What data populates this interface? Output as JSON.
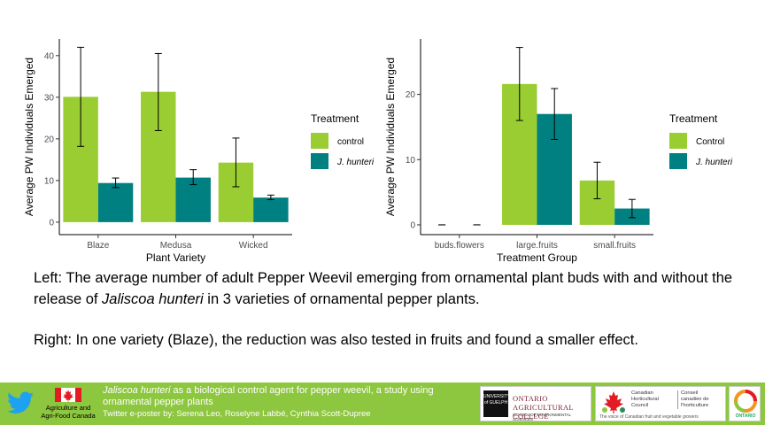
{
  "chart_data": [
    {
      "type": "bar",
      "title": "",
      "xlabel": "Plant Variety",
      "ylabel": "Average PW Individuals Emerged",
      "categories": [
        "Blaze",
        "Medusa",
        "Wicked"
      ],
      "ylim": [
        -3,
        44
      ],
      "yticks": [
        0,
        10,
        20,
        30,
        40
      ],
      "grid": false,
      "legend_title": "Treatment",
      "legend_position": "right",
      "series": [
        {
          "name": "control",
          "color": "#9acd32",
          "values": [
            30.1,
            31.3,
            14.3
          ],
          "err_low": [
            18.2,
            22.0,
            8.5
          ],
          "err_high": [
            42.0,
            40.5,
            20.2
          ]
        },
        {
          "name": "J. hunteri",
          "color": "#008080",
          "values": [
            9.4,
            10.7,
            5.9
          ],
          "err_low": [
            8.3,
            9.0,
            5.4
          ],
          "err_high": [
            10.6,
            12.6,
            6.5
          ]
        }
      ]
    },
    {
      "type": "bar",
      "title": "",
      "xlabel": "Treatment Group",
      "ylabel": "Average PW Individuals Emerged",
      "categories": [
        "buds.flowers",
        "large.fruits",
        "small.fruits"
      ],
      "ylim": [
        -1.5,
        28.5
      ],
      "yticks": [
        0,
        10,
        20
      ],
      "grid": false,
      "legend_title": "Treatment",
      "legend_position": "right",
      "series": [
        {
          "name": "Control",
          "color": "#9acd32",
          "values": [
            0,
            21.6,
            6.8
          ],
          "err_low": [
            0,
            16.0,
            4.0
          ],
          "err_high": [
            0,
            27.2,
            9.6
          ]
        },
        {
          "name": "J. hunteri",
          "color": "#008080",
          "values": [
            0,
            17.0,
            2.5
          ],
          "err_low": [
            0,
            13.1,
            1.1
          ],
          "err_high": [
            0,
            20.9,
            3.9
          ]
        }
      ]
    }
  ],
  "captions": {
    "left_prefix": "Left: The average number of adult Pepper Weevil emerging from ornamental plant buds with and without the release of ",
    "left_italic": "Jaliscoa hunteri",
    "left_suffix": " in 3 varieties of ornamental pepper plants.",
    "right": "Right: In one variety (Blaze), the reduction was also tested in fruits and found a smaller effect."
  },
  "footer": {
    "aafc_label_line1": "Agriculture and",
    "aafc_label_line2": "Agri-Food Canada",
    "title_italic": "Jaliscoa hunteri",
    "title_rest": " as a biological control agent for pepper weevil, a study using ornamental pepper plants",
    "credit": "Twitter e-poster by: Serena Leo, Roselyne Labbé, Cynthia Scott-Dupree",
    "oac_crest": "UNIVERSITY of GUELPH",
    "oac_name_line1": "ONTARIO",
    "oac_name_line2": "AGRICULTURAL COLLEGE",
    "oac_sub": "SCHOOL OF ENVIRONMENTAL SCIENCES",
    "chc_en_1": "Canadian",
    "chc_en_2": "Horticultural",
    "chc_en_3": "Council",
    "chc_fr_1": "Conseil",
    "chc_fr_2": "canadien de",
    "chc_fr_3": "l'horticulture",
    "chc_tag": "The voice of Canadian fruit and vegetable growers",
    "ontario_text": "ONTARIO",
    "colors": {
      "bar_green": "#8dc63f",
      "twitter_blue": "#1da1f2",
      "flag_red": "#e31b23"
    }
  }
}
